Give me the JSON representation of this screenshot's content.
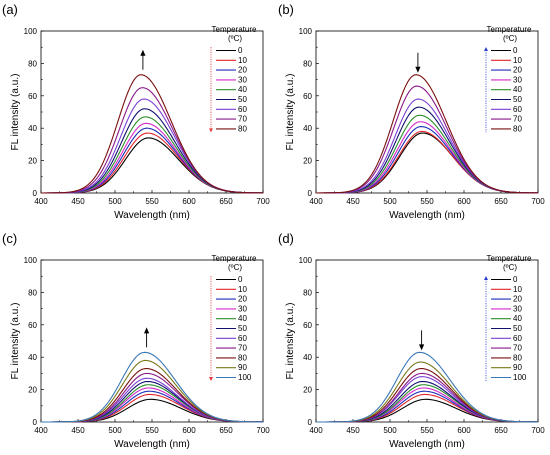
{
  "chart_data": [
    {
      "type": "line",
      "panel_label": "(a)",
      "xlabel": "Wavelength (nm)",
      "ylabel": "FL intensity (a.u.)",
      "xlim": [
        400,
        700
      ],
      "ylim": [
        0,
        100
      ],
      "x_ticks": [
        400,
        450,
        500,
        550,
        600,
        650,
        700
      ],
      "y_ticks": [
        0,
        20,
        40,
        60,
        80,
        100
      ],
      "legend_title": [
        "Temperature",
        "(ºC)"
      ],
      "legend_placement": "top-right",
      "arrow_main": "up",
      "arrow_legend": "down",
      "arrow_legend_color": "#e0393e",
      "series": [
        {
          "name": "0",
          "color": "#000000",
          "peak_x": 545,
          "peak_y": 34
        },
        {
          "name": "10",
          "color": "#e3262a",
          "peak_x": 544,
          "peak_y": 37
        },
        {
          "name": "20",
          "color": "#1f2fb8",
          "peak_x": 543,
          "peak_y": 40
        },
        {
          "name": "30",
          "color": "#d629c9",
          "peak_x": 542,
          "peak_y": 43
        },
        {
          "name": "40",
          "color": "#2c8f2c",
          "peak_x": 541,
          "peak_y": 47
        },
        {
          "name": "50",
          "color": "#101070",
          "peak_x": 540,
          "peak_y": 52
        },
        {
          "name": "60",
          "color": "#7b3fd6",
          "peak_x": 539,
          "peak_y": 58
        },
        {
          "name": "70",
          "color": "#8a1a8a",
          "peak_x": 537,
          "peak_y": 65
        },
        {
          "name": "80",
          "color": "#7a1010",
          "peak_x": 535,
          "peak_y": 73
        }
      ]
    },
    {
      "type": "line",
      "panel_label": "(b)",
      "xlabel": "Wavelength (nm)",
      "ylabel": "FL intensity (a.u.)",
      "xlim": [
        400,
        700
      ],
      "ylim": [
        0,
        100
      ],
      "x_ticks": [
        400,
        450,
        500,
        550,
        600,
        650,
        700
      ],
      "y_ticks": [
        0,
        20,
        40,
        60,
        80,
        100
      ],
      "legend_title": [
        "Temperature",
        "(ºC)"
      ],
      "legend_placement": "top-right",
      "arrow_main": "down",
      "arrow_legend": "up",
      "arrow_legend_color": "#2a3fd0",
      "series": [
        {
          "name": "0",
          "color": "#000000",
          "peak_x": 544,
          "peak_y": 37
        },
        {
          "name": "10",
          "color": "#e3262a",
          "peak_x": 543,
          "peak_y": 38
        },
        {
          "name": "20",
          "color": "#1f2fb8",
          "peak_x": 542,
          "peak_y": 41
        },
        {
          "name": "30",
          "color": "#d629c9",
          "peak_x": 541,
          "peak_y": 44
        },
        {
          "name": "40",
          "color": "#2c8f2c",
          "peak_x": 540,
          "peak_y": 48
        },
        {
          "name": "50",
          "color": "#101070",
          "peak_x": 539,
          "peak_y": 53
        },
        {
          "name": "60",
          "color": "#7b3fd6",
          "peak_x": 538,
          "peak_y": 58
        },
        {
          "name": "70",
          "color": "#8a1a8a",
          "peak_x": 536,
          "peak_y": 66
        },
        {
          "name": "80",
          "color": "#7a1010",
          "peak_x": 535,
          "peak_y": 73
        }
      ]
    },
    {
      "type": "line",
      "panel_label": "(c)",
      "xlabel": "Wavelength (nm)",
      "ylabel": "FL intensity (a.u.)",
      "xlim": [
        400,
        700
      ],
      "ylim": [
        0,
        100
      ],
      "x_ticks": [
        400,
        450,
        500,
        550,
        600,
        650,
        700
      ],
      "y_ticks": [
        0,
        20,
        40,
        60,
        80,
        100
      ],
      "legend_title": [
        "Temperature",
        "(ºC)"
      ],
      "legend_placement": "top-right",
      "arrow_main": "up",
      "arrow_legend": "down",
      "arrow_legend_color": "#e0393e",
      "series": [
        {
          "name": "0",
          "color": "#000000",
          "peak_x": 548,
          "peak_y": 14
        },
        {
          "name": "10",
          "color": "#e3262a",
          "peak_x": 547,
          "peak_y": 17
        },
        {
          "name": "20",
          "color": "#1f2fb8",
          "peak_x": 546,
          "peak_y": 19
        },
        {
          "name": "30",
          "color": "#d629c9",
          "peak_x": 545,
          "peak_y": 21
        },
        {
          "name": "40",
          "color": "#2c8f2c",
          "peak_x": 545,
          "peak_y": 23
        },
        {
          "name": "50",
          "color": "#101070",
          "peak_x": 544,
          "peak_y": 25
        },
        {
          "name": "60",
          "color": "#7b3fd6",
          "peak_x": 543,
          "peak_y": 27
        },
        {
          "name": "70",
          "color": "#8a1a8a",
          "peak_x": 543,
          "peak_y": 30
        },
        {
          "name": "80",
          "color": "#7a1010",
          "peak_x": 542,
          "peak_y": 33
        },
        {
          "name": "90",
          "color": "#7a7a1a",
          "peak_x": 541,
          "peak_y": 38
        },
        {
          "name": "100",
          "color": "#3a78b8",
          "peak_x": 540,
          "peak_y": 43
        }
      ]
    },
    {
      "type": "line",
      "panel_label": "(d)",
      "xlabel": "Wavelength (nm)",
      "ylabel": "FL intensity (a.u.)",
      "xlim": [
        400,
        700
      ],
      "ylim": [
        0,
        100
      ],
      "x_ticks": [
        400,
        450,
        500,
        550,
        600,
        650,
        700
      ],
      "y_ticks": [
        0,
        20,
        40,
        60,
        80,
        100
      ],
      "legend_title": [
        "Temperature",
        "(ºC)"
      ],
      "legend_placement": "top-right",
      "arrow_main": "down",
      "arrow_legend": "up",
      "arrow_legend_color": "#2a3fd0",
      "series": [
        {
          "name": "0",
          "color": "#000000",
          "peak_x": 548,
          "peak_y": 14
        },
        {
          "name": "10",
          "color": "#e3262a",
          "peak_x": 547,
          "peak_y": 17
        },
        {
          "name": "20",
          "color": "#1f2fb8",
          "peak_x": 546,
          "peak_y": 19
        },
        {
          "name": "30",
          "color": "#d629c9",
          "peak_x": 545,
          "peak_y": 21
        },
        {
          "name": "40",
          "color": "#2c8f2c",
          "peak_x": 545,
          "peak_y": 23
        },
        {
          "name": "50",
          "color": "#101070",
          "peak_x": 544,
          "peak_y": 25
        },
        {
          "name": "60",
          "color": "#7b3fd6",
          "peak_x": 543,
          "peak_y": 28
        },
        {
          "name": "70",
          "color": "#8a1a8a",
          "peak_x": 543,
          "peak_y": 30
        },
        {
          "name": "80",
          "color": "#7a1010",
          "peak_x": 542,
          "peak_y": 33
        },
        {
          "name": "90",
          "color": "#7a7a1a",
          "peak_x": 541,
          "peak_y": 37
        },
        {
          "name": "100",
          "color": "#3a78b8",
          "peak_x": 540,
          "peak_y": 43
        }
      ]
    }
  ]
}
